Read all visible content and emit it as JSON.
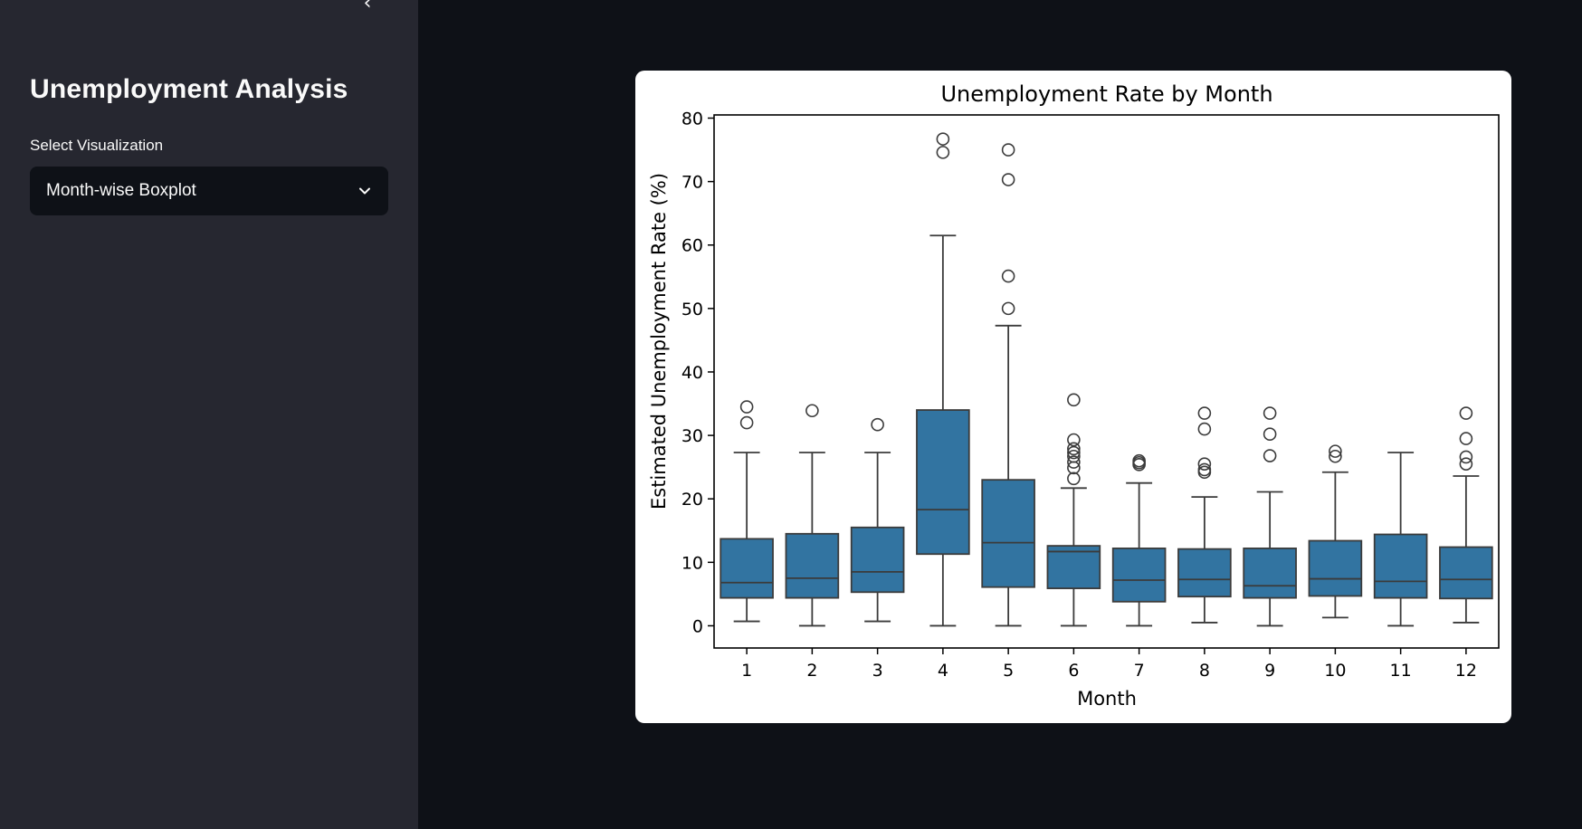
{
  "sidebar": {
    "collapse_icon": "chevron-left-icon",
    "collapse_glyph": "‹",
    "title": "Unemployment Analysis",
    "select_label": "Select Visualization",
    "select_value": "Month-wise Boxplot",
    "select_icon": "chevron-down-icon"
  },
  "colors": {
    "app_bg": "#0e1117",
    "sidebar_bg": "#262730",
    "box_fill": "#3274a1",
    "box_edge": "#3b3b3b"
  },
  "chart_data": {
    "type": "boxplot",
    "title": "Unemployment Rate by Month",
    "xlabel": "Month",
    "ylabel": "Estimated Unemployment Rate (%)",
    "ylim": [
      -3.5,
      80.5
    ],
    "yticks": [
      0,
      10,
      20,
      30,
      40,
      50,
      60,
      70,
      80
    ],
    "grid": false,
    "legend": "none",
    "categories": [
      "1",
      "2",
      "3",
      "4",
      "5",
      "6",
      "7",
      "8",
      "9",
      "10",
      "11",
      "12"
    ],
    "boxes": [
      {
        "month": "1",
        "whisker_low": 0.7,
        "q1": 4.4,
        "median": 6.8,
        "q3": 13.7,
        "whisker_high": 27.3,
        "outliers": [
          32.0,
          34.5
        ]
      },
      {
        "month": "2",
        "whisker_low": 0.0,
        "q1": 4.4,
        "median": 7.5,
        "q3": 14.5,
        "whisker_high": 27.3,
        "outliers": [
          33.9
        ]
      },
      {
        "month": "3",
        "whisker_low": 0.7,
        "q1": 5.3,
        "median": 8.5,
        "q3": 15.5,
        "whisker_high": 27.3,
        "outliers": [
          31.7
        ]
      },
      {
        "month": "4",
        "whisker_low": 0.0,
        "q1": 11.3,
        "median": 18.3,
        "q3": 34.0,
        "whisker_high": 61.5,
        "outliers": [
          74.6,
          76.7
        ]
      },
      {
        "month": "5",
        "whisker_low": 0.0,
        "q1": 6.1,
        "median": 13.1,
        "q3": 23.0,
        "whisker_high": 47.3,
        "outliers": [
          50.0,
          55.1,
          70.3,
          75.0
        ]
      },
      {
        "month": "6",
        "whisker_low": 0.0,
        "q1": 5.9,
        "median": 11.7,
        "q3": 12.6,
        "whisker_high": 21.7,
        "outliers": [
          23.2,
          24.9,
          25.8,
          26.7,
          27.3,
          27.9,
          29.3,
          35.6
        ]
      },
      {
        "month": "7",
        "whisker_low": 0.0,
        "q1": 3.8,
        "median": 7.2,
        "q3": 12.2,
        "whisker_high": 22.5,
        "outliers": [
          25.4,
          25.7,
          26.0
        ]
      },
      {
        "month": "8",
        "whisker_low": 0.5,
        "q1": 4.6,
        "median": 7.3,
        "q3": 12.1,
        "whisker_high": 20.3,
        "outliers": [
          24.2,
          24.6,
          25.5,
          31.0,
          33.5
        ]
      },
      {
        "month": "9",
        "whisker_low": 0.0,
        "q1": 4.4,
        "median": 6.3,
        "q3": 12.2,
        "whisker_high": 21.1,
        "outliers": [
          26.8,
          30.2,
          33.5
        ]
      },
      {
        "month": "10",
        "whisker_low": 1.3,
        "q1": 4.7,
        "median": 7.4,
        "q3": 13.4,
        "whisker_high": 24.2,
        "outliers": [
          26.7,
          27.5
        ]
      },
      {
        "month": "11",
        "whisker_low": 0.0,
        "q1": 4.4,
        "median": 7.0,
        "q3": 14.4,
        "whisker_high": 27.3,
        "outliers": []
      },
      {
        "month": "12",
        "whisker_low": 0.5,
        "q1": 4.3,
        "median": 7.3,
        "q3": 12.4,
        "whisker_high": 23.6,
        "outliers": [
          25.5,
          26.6,
          29.5,
          33.5
        ]
      }
    ]
  }
}
